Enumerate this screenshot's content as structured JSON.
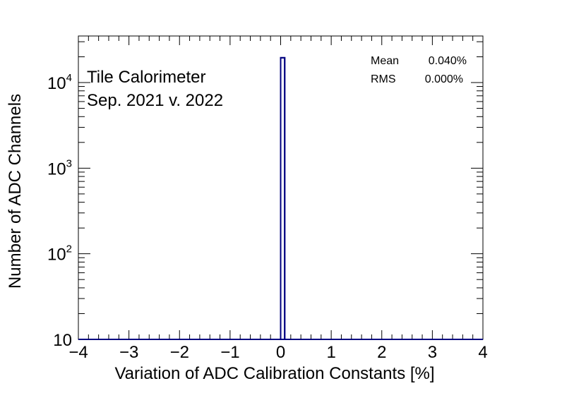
{
  "chart_data": {
    "type": "bar",
    "subtype": "histogram",
    "annotation_lines": [
      "Tile Calorimeter",
      "Sep. 2021 v. 2022"
    ],
    "xlabel": "Variation of ADC Calibration Constants [%]",
    "ylabel": "Number of ADC Channels",
    "xlim": [
      -4,
      4
    ],
    "ylim": [
      10,
      35000
    ],
    "yscale": "log",
    "x_ticks": [
      {
        "value": -4,
        "label": "−4"
      },
      {
        "value": -3,
        "label": "−3"
      },
      {
        "value": -2,
        "label": "−2"
      },
      {
        "value": -1,
        "label": "−1"
      },
      {
        "value": 0,
        "label": "0"
      },
      {
        "value": 1,
        "label": "1"
      },
      {
        "value": 2,
        "label": "2"
      },
      {
        "value": 3,
        "label": "3"
      },
      {
        "value": 4,
        "label": "4"
      }
    ],
    "y_ticks": [
      {
        "value": 10,
        "base": "10",
        "exp": ""
      },
      {
        "value": 100,
        "base": "10",
        "exp": "2"
      },
      {
        "value": 1000,
        "base": "10",
        "exp": "3"
      },
      {
        "value": 10000,
        "base": "10",
        "exp": "4"
      }
    ],
    "stats": [
      {
        "label": "Mean",
        "value": "0.040%"
      },
      {
        "label": "RMS",
        "value": "0.000%"
      }
    ],
    "series": [
      {
        "bins": [
          {
            "x_low": 0.0,
            "x_high": 0.08,
            "count": 19500
          }
        ]
      }
    ],
    "line_color": "#00007f",
    "grid": false
  }
}
